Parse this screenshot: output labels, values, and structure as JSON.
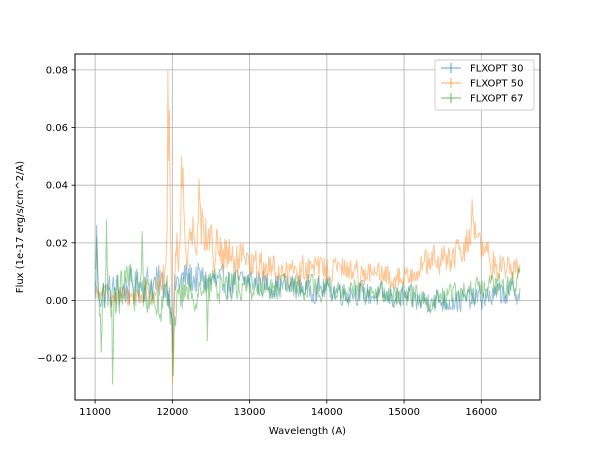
{
  "chart_data": {
    "type": "line",
    "title": "",
    "xlabel": "Wavelength (A)",
    "ylabel": "Flux (1e-17 erg/s/cm^2/A)",
    "xlim": [
      10740,
      16760
    ],
    "ylim": [
      -0.0345,
      0.0855
    ],
    "xticks": [
      11000,
      12000,
      13000,
      14000,
      15000,
      16000
    ],
    "xtick_labels": [
      "11000",
      "12000",
      "13000",
      "14000",
      "15000",
      "16000"
    ],
    "yticks": [
      -0.02,
      0.0,
      0.02,
      0.04,
      0.06,
      0.08
    ],
    "ytick_labels": [
      "−0.02",
      "0.00",
      "0.02",
      "0.04",
      "0.06",
      "0.08"
    ],
    "grid": true,
    "legend_position": "top-right",
    "series": [
      {
        "name": "FLXOPT 30",
        "color": "#1f77b4",
        "x_start": 11000,
        "x_end": 16500,
        "control_points": [
          [
            11000,
            0.004
          ],
          [
            11100,
            0.002
          ],
          [
            11200,
            0.003
          ],
          [
            11400,
            0.004
          ],
          [
            11600,
            0.006
          ],
          [
            11800,
            0.006
          ],
          [
            11950,
            0.004
          ],
          [
            12000,
            -0.002
          ],
          [
            12050,
            0.006
          ],
          [
            12200,
            0.008
          ],
          [
            12400,
            0.007
          ],
          [
            12600,
            0.006
          ],
          [
            12800,
            0.006
          ],
          [
            13000,
            0.007
          ],
          [
            13200,
            0.006
          ],
          [
            13400,
            0.005
          ],
          [
            13600,
            0.005
          ],
          [
            13800,
            0.004
          ],
          [
            14000,
            0.004
          ],
          [
            14200,
            0.003
          ],
          [
            14400,
            0.003
          ],
          [
            14600,
            0.002
          ],
          [
            14800,
            0.001
          ],
          [
            15000,
            0.001
          ],
          [
            15200,
            0.0
          ],
          [
            15400,
            0.0
          ],
          [
            15600,
            0.0
          ],
          [
            15800,
            0.0
          ],
          [
            16000,
            0.001
          ],
          [
            16200,
            0.002
          ],
          [
            16400,
            0.003
          ],
          [
            16500,
            0.003
          ]
        ],
        "noise_amplitude": [
          [
            11000,
            0.006
          ],
          [
            12000,
            0.006
          ],
          [
            13000,
            0.0045
          ],
          [
            14000,
            0.004
          ],
          [
            15000,
            0.004
          ],
          [
            16500,
            0.004
          ]
        ],
        "spikes": [
          [
            11020,
            0.026
          ],
          [
            12000,
            -0.018
          ]
        ]
      },
      {
        "name": "FLXOPT 50",
        "color": "#ff7f0e",
        "x_start": 11000,
        "x_end": 16500,
        "control_points": [
          [
            11000,
            0.002
          ],
          [
            11200,
            0.002
          ],
          [
            11400,
            0.001
          ],
          [
            11600,
            0.002
          ],
          [
            11800,
            0.004
          ],
          [
            11900,
            0.008
          ],
          [
            11950,
            0.02
          ],
          [
            12000,
            0.004
          ],
          [
            12050,
            0.018
          ],
          [
            12100,
            0.022
          ],
          [
            12200,
            0.02
          ],
          [
            12300,
            0.026
          ],
          [
            12400,
            0.026
          ],
          [
            12500,
            0.02
          ],
          [
            12600,
            0.016
          ],
          [
            12800,
            0.013
          ],
          [
            13000,
            0.012
          ],
          [
            13200,
            0.012
          ],
          [
            13400,
            0.01
          ],
          [
            13600,
            0.01
          ],
          [
            13800,
            0.011
          ],
          [
            14000,
            0.011
          ],
          [
            14200,
            0.011
          ],
          [
            14400,
            0.01
          ],
          [
            14600,
            0.009
          ],
          [
            14800,
            0.008
          ],
          [
            15000,
            0.008
          ],
          [
            15200,
            0.012
          ],
          [
            15400,
            0.014
          ],
          [
            15600,
            0.014
          ],
          [
            15800,
            0.018
          ],
          [
            15900,
            0.028
          ],
          [
            16000,
            0.016
          ],
          [
            16200,
            0.012
          ],
          [
            16400,
            0.012
          ],
          [
            16500,
            0.01
          ]
        ],
        "noise_amplitude": [
          [
            11000,
            0.003
          ],
          [
            11800,
            0.004
          ],
          [
            12000,
            0.01
          ],
          [
            12600,
            0.008
          ],
          [
            13200,
            0.005
          ],
          [
            14000,
            0.0045
          ],
          [
            15000,
            0.004
          ],
          [
            16000,
            0.006
          ],
          [
            16500,
            0.004
          ]
        ],
        "spikes": [
          [
            11945,
            0.08
          ],
          [
            11960,
            0.066
          ],
          [
            12000,
            -0.029
          ],
          [
            12010,
            -0.022
          ],
          [
            12120,
            0.05
          ],
          [
            12140,
            0.046
          ],
          [
            12350,
            0.042
          ],
          [
            15880,
            0.035
          ]
        ]
      },
      {
        "name": "FLXOPT 67",
        "color": "#2ca02c",
        "x_start": 11000,
        "x_end": 16500,
        "control_points": [
          [
            11000,
            0.006
          ],
          [
            11100,
            0.0
          ],
          [
            11200,
            -0.002
          ],
          [
            11300,
            0.002
          ],
          [
            11400,
            0.006
          ],
          [
            11600,
            0.004
          ],
          [
            11800,
            0.002
          ],
          [
            11950,
            0.0
          ],
          [
            12000,
            -0.004
          ],
          [
            12100,
            0.002
          ],
          [
            12300,
            0.004
          ],
          [
            12500,
            0.005
          ],
          [
            12700,
            0.006
          ],
          [
            12900,
            0.005
          ],
          [
            13100,
            0.004
          ],
          [
            13300,
            0.004
          ],
          [
            13500,
            0.004
          ],
          [
            13700,
            0.005
          ],
          [
            13900,
            0.004
          ],
          [
            14100,
            0.003
          ],
          [
            14300,
            0.003
          ],
          [
            14500,
            0.003
          ],
          [
            14700,
            0.002
          ],
          [
            14900,
            0.002
          ],
          [
            15100,
            0.002
          ],
          [
            15300,
            0.0
          ],
          [
            15500,
            0.001
          ],
          [
            15700,
            0.002
          ],
          [
            15900,
            0.004
          ],
          [
            16100,
            0.004
          ],
          [
            16300,
            0.005
          ],
          [
            16500,
            0.007
          ]
        ],
        "noise_amplitude": [
          [
            11000,
            0.008
          ],
          [
            11600,
            0.007
          ],
          [
            12100,
            0.007
          ],
          [
            13000,
            0.0045
          ],
          [
            14000,
            0.004
          ],
          [
            15000,
            0.004
          ],
          [
            16500,
            0.004
          ]
        ],
        "spikes": [
          [
            11020,
            0.022
          ],
          [
            11080,
            -0.018
          ],
          [
            11150,
            0.028
          ],
          [
            11230,
            -0.029
          ],
          [
            11610,
            0.024
          ],
          [
            12010,
            -0.026
          ],
          [
            12450,
            -0.014
          ]
        ]
      }
    ]
  }
}
